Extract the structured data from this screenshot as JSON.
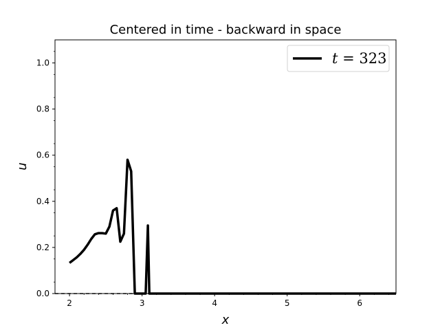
{
  "chart_data": {
    "type": "line",
    "title": "Centered in time - backward in space",
    "xlabel": "x",
    "ylabel": "u",
    "xlim": [
      1.8,
      6.5
    ],
    "ylim": [
      0.0,
      1.1
    ],
    "xticks": [
      2,
      3,
      4,
      5,
      6
    ],
    "xtick_labels": [
      "2",
      "3",
      "4",
      "5",
      "6"
    ],
    "yticks": [
      0.0,
      0.2,
      0.4,
      0.6,
      0.8,
      1.0
    ],
    "ytick_labels": [
      "0.0",
      "0.2",
      "0.4",
      "0.6",
      "0.8",
      "1.0"
    ],
    "grid": false,
    "legend_position": "top-right",
    "legend": {
      "var": "t",
      "eq": " = ",
      "value": "323"
    },
    "series": [
      {
        "color": "#000000",
        "x": [
          2.0,
          2.05,
          2.1,
          2.15,
          2.2,
          2.25,
          2.3,
          2.35,
          2.4,
          2.45,
          2.5,
          2.55,
          2.6,
          2.65,
          2.7,
          2.75,
          2.8,
          2.85,
          2.9,
          2.95,
          3.0,
          3.05,
          3.08,
          3.1,
          3.12,
          3.14,
          3.15,
          6.5
        ],
        "y": [
          0.133,
          0.145,
          0.157,
          0.172,
          0.19,
          0.212,
          0.237,
          0.257,
          0.262,
          0.262,
          0.26,
          0.29,
          0.36,
          0.37,
          0.225,
          0.26,
          0.58,
          0.53,
          0.0,
          0.0,
          0.0,
          0.0,
          0.295,
          0.0,
          0.0,
          0.0,
          0.0,
          0.0
        ]
      }
    ],
    "baseline": {
      "y": 0.0,
      "style": "dashed",
      "color": "#000000"
    }
  }
}
